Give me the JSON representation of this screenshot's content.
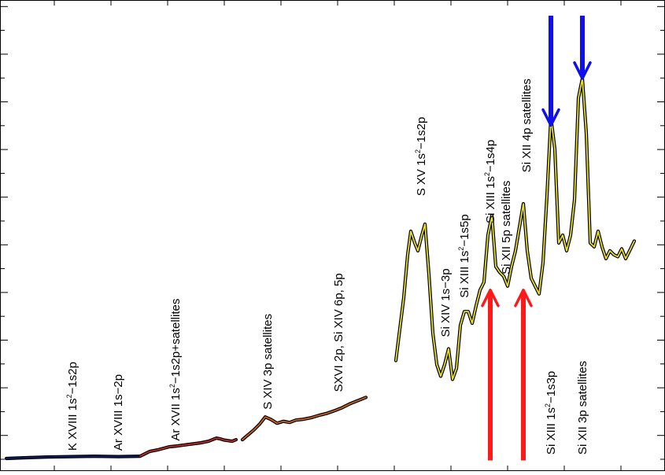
{
  "chart_data": {
    "type": "line",
    "title": "",
    "xlabel": "",
    "ylabel": "",
    "grid": false,
    "legend": "none",
    "series_colors": {
      "K XVIII / Ar XVIII segment": "#0a1f66",
      "Ar XVII segment": "#c02a2a",
      "S XIV / SXVI segment": "#c8621c",
      "Si segment": "#e8e020"
    },
    "arrow_colors": {
      "down": "#1010ee",
      "up": "#ff1a1a"
    },
    "segments": [
      {
        "key": "k_ar18",
        "color": "#0a1f66",
        "x": [
          8,
          30,
          60,
          90,
          120,
          150,
          178
        ],
        "y": [
          0.03,
          0.032,
          0.034,
          0.035,
          0.036,
          0.035,
          0.036
        ]
      },
      {
        "key": "ar17",
        "color": "#c02a2a",
        "x": [
          178,
          190,
          200,
          215,
          225,
          240,
          255,
          265,
          275,
          280,
          285,
          295,
          300
        ],
        "y": [
          0.036,
          0.048,
          0.052,
          0.06,
          0.062,
          0.066,
          0.07,
          0.074,
          0.082,
          0.08,
          0.077,
          0.074,
          0.078
        ]
      },
      {
        "key": "s14",
        "color": "#c8621c",
        "x": [
          308,
          315,
          322,
          330,
          337,
          344,
          352,
          360,
          368,
          376,
          385,
          395,
          405,
          415,
          425,
          435,
          445,
          455,
          465
        ],
        "y": [
          0.078,
          0.09,
          0.102,
          0.118,
          0.136,
          0.13,
          0.12,
          0.125,
          0.122,
          0.128,
          0.13,
          0.134,
          0.14,
          0.145,
          0.152,
          0.16,
          0.17,
          0.178,
          0.186
        ]
      },
      {
        "key": "si",
        "color": "#e8e020",
        "x": [
          503,
          508,
          513,
          518,
          522,
          527,
          531,
          536,
          540,
          545,
          550,
          555,
          560,
          565,
          570,
          575,
          580,
          585,
          590,
          595,
          600,
          605,
          610,
          615,
          620,
          625,
          630,
          635,
          640,
          645,
          650,
          655,
          660,
          665,
          670,
          675,
          680,
          685,
          690,
          695,
          700,
          705,
          710,
          715,
          720,
          725,
          730,
          735,
          740,
          745,
          750,
          755,
          760,
          765,
          770,
          775,
          780,
          785,
          790,
          795,
          800,
          806
        ],
        "y": [
          0.28,
          0.36,
          0.44,
          0.55,
          0.61,
          0.58,
          0.56,
          0.6,
          0.628,
          0.5,
          0.35,
          0.27,
          0.24,
          0.27,
          0.31,
          0.232,
          0.26,
          0.37,
          0.405,
          0.405,
          0.375,
          0.42,
          0.46,
          0.48,
          0.6,
          0.65,
          0.52,
          0.505,
          0.495,
          0.47,
          0.52,
          0.56,
          0.62,
          0.68,
          0.56,
          0.49,
          0.47,
          0.45,
          0.53,
          0.7,
          0.9,
          0.82,
          0.58,
          0.6,
          0.56,
          0.6,
          0.69,
          0.95,
          1.0,
          0.86,
          0.58,
          0.57,
          0.61,
          0.57,
          0.54,
          0.56,
          0.55,
          0.545,
          0.565,
          0.54,
          0.56,
          0.585
        ]
      }
    ],
    "annotations": [
      {
        "text": "K XVIII 1s²−1s2p",
        "x": 92,
        "y": 0.05
      },
      {
        "text": "Ar XVIII 1s−2p",
        "x": 150,
        "y": 0.05
      },
      {
        "text": "Ar XVII 1s²−1s2p+satellites",
        "x": 223,
        "y": 0.075
      },
      {
        "text": "S XIV 3p satellites",
        "x": 340,
        "y": 0.155
      },
      {
        "text": "SXVI 2p, Si XIV 6p, 5p",
        "x": 430,
        "y": 0.2
      },
      {
        "text": "S XV 1s²−1s2p",
        "x": 535,
        "y": 0.7
      },
      {
        "text": "Si XIV 1s−3p",
        "x": 566,
        "y": 0.34
      },
      {
        "text": "Si XIII 1s²−1s5p",
        "x": 590,
        "y": 0.44
      },
      {
        "text": "Si XIII 1s²−1s4p",
        "x": 623,
        "y": 0.63
      },
      {
        "text": "Si XII 5p satellites",
        "x": 643,
        "y": 0.5
      },
      {
        "text": "Si XII 4p satellites",
        "x": 669,
        "y": 0.76
      },
      {
        "text": "Si XIII 1s²−1s3p",
        "x": 700,
        "y": 0.04
      },
      {
        "text": "Si XII 3p satellites",
        "x": 740,
        "y": 0.04
      }
    ],
    "arrows": [
      {
        "direction": "down",
        "x": 700,
        "from": 1.16,
        "to": 0.88
      },
      {
        "direction": "down",
        "x": 740,
        "from": 1.16,
        "to": 1.0
      },
      {
        "direction": "up",
        "x": 623,
        "from": 0.025,
        "to": 0.46
      },
      {
        "direction": "up",
        "x": 665,
        "from": 0.025,
        "to": 0.46
      }
    ],
    "xlim": [
      0,
      845
    ],
    "ylim": [
      0,
      1.2
    ]
  }
}
